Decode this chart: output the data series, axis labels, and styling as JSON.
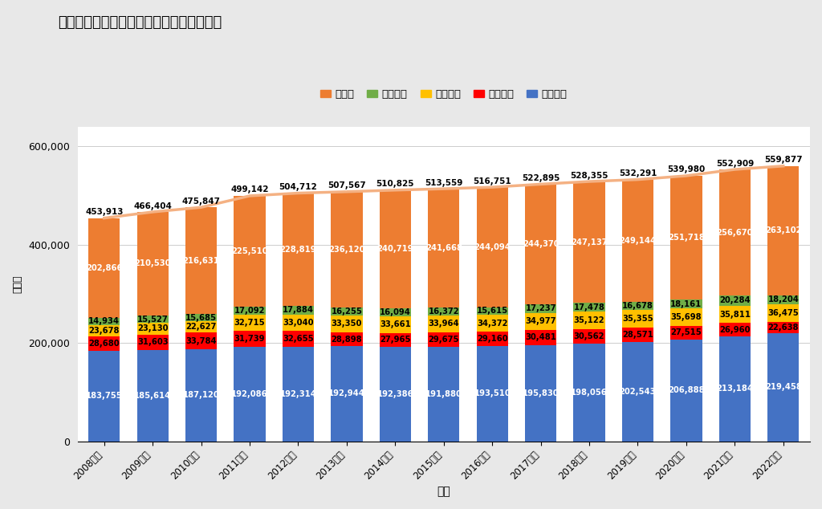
{
  "title": "明治大学の資産・負債・基本金の比率推移",
  "xlabel": "年度",
  "ylabel": "百万円",
  "years": [
    "2008年度",
    "2009年度",
    "2010年度",
    "2011年度",
    "2012年度",
    "2013年度",
    "2014年度",
    "2015年度",
    "2016年度",
    "2017年度",
    "2018年度",
    "2019年度",
    "2020年度",
    "2021年度",
    "2022年度"
  ],
  "固定資産": [
    183755,
    185614,
    187120,
    192086,
    192314,
    192944,
    192386,
    191880,
    193510,
    195830,
    198056,
    202543,
    206888,
    213184,
    219458
  ],
  "流動資産": [
    28680,
    31603,
    33784,
    31739,
    32655,
    28898,
    27965,
    29675,
    29160,
    30481,
    30562,
    28571,
    27515,
    26960,
    22638
  ],
  "固定負債": [
    23678,
    23130,
    22627,
    32715,
    33040,
    33350,
    33661,
    33964,
    34372,
    34977,
    35122,
    35355,
    35698,
    35811,
    36475
  ],
  "流動負債": [
    14934,
    15527,
    15685,
    17092,
    17884,
    16255,
    16094,
    16372,
    15615,
    17237,
    17478,
    16678,
    18161,
    20284,
    18204
  ],
  "基本金": [
    202866,
    210530,
    216631,
    225510,
    228819,
    236120,
    240719,
    241668,
    244094,
    244370,
    247137,
    249144,
    251718,
    256670,
    263102
  ],
  "総計": [
    453913,
    466404,
    475847,
    499142,
    504712,
    507567,
    510825,
    513559,
    516751,
    522895,
    528355,
    532291,
    539980,
    552909,
    559877
  ],
  "colors": {
    "固定資産": "#4472C4",
    "流動資産": "#FF0000",
    "固定負債": "#FFC000",
    "流動負債": "#70AD47",
    "基本金": "#ED7D31"
  },
  "line_color": "#F4B183",
  "background_color": "#E8E8E8",
  "plot_background": "#FFFFFF",
  "ylim": [
    0,
    640000
  ],
  "yticks": [
    0,
    200000,
    400000,
    600000
  ],
  "legend_order": [
    "基本金",
    "流動負債",
    "固定負債",
    "流動資産",
    "固定資産"
  ]
}
